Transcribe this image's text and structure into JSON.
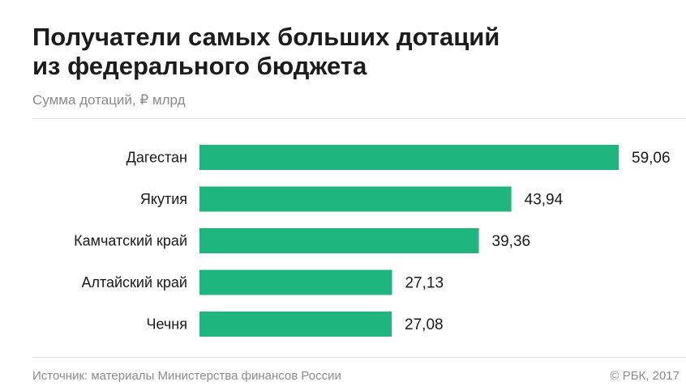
{
  "header": {
    "title_line1": "Получатели самых больших дотаций",
    "title_line2": "из федерального бюджета",
    "subtitle": "Сумма дотаций, ₽ млрд"
  },
  "footer": {
    "source": "Источник: материалы Министерства финансов России",
    "copyright": "© РБК, 2017"
  },
  "chart_data": {
    "type": "bar",
    "orientation": "horizontal",
    "categories": [
      "Дагестан",
      "Якутия",
      "Камчатский край",
      "Алтайский край",
      "Чечня"
    ],
    "values": [
      59.06,
      43.94,
      39.36,
      27.13,
      27.08
    ],
    "value_labels": [
      "59,06",
      "43,94",
      "39,36",
      "27,13",
      "27,08"
    ],
    "title": "Получатели самых больших дотаций из федерального бюджета",
    "subtitle": "Сумма дотаций, ₽ млрд",
    "bar_color": "#1fb57f",
    "grid": false,
    "legend": "none",
    "xlim": [
      0,
      59.06
    ]
  }
}
